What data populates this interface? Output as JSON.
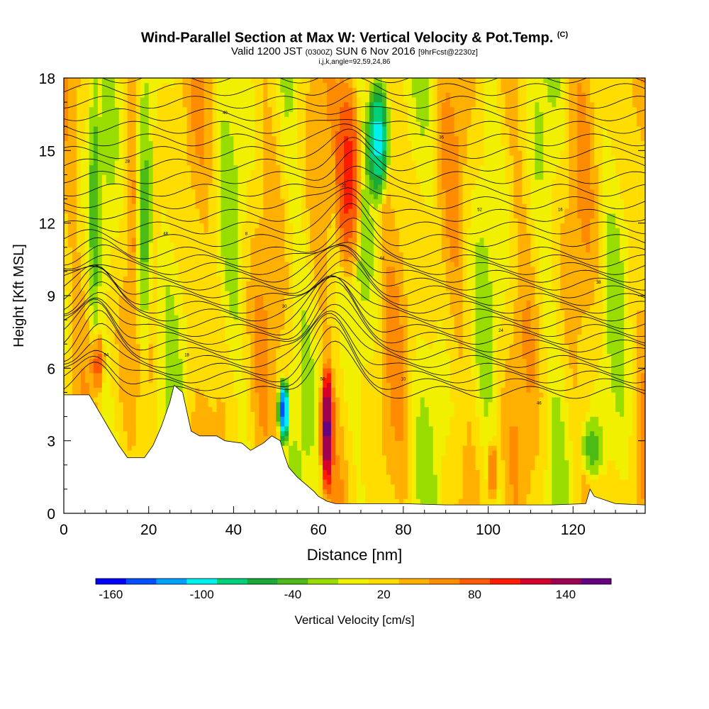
{
  "title": {
    "main": "Wind-Parallel Section at Max W: Vertical Velocity & Pot.Temp.",
    "copyright": "(C)",
    "valid_prefix": "Valid 1200 JST",
    "valid_utc": "(0300Z)",
    "valid_date": "SUN 6 Nov 2016",
    "forecast": "[9hrFcst@2230z]",
    "indices": "i,j,k,angle=92,59,24,86"
  },
  "chart_data": {
    "type": "heatmap",
    "xlabel": "Distance [nm]",
    "ylabel": "Height [Kft MSL]",
    "xlim": [
      0,
      137
    ],
    "ylim": [
      0,
      18
    ],
    "x_ticks": [
      0,
      20,
      40,
      60,
      80,
      100,
      120
    ],
    "y_ticks": [
      0,
      3,
      6,
      9,
      12,
      15,
      18
    ],
    "colorbar": {
      "label": "Vertical Velocity [cm/s]",
      "range": [
        -170,
        170
      ],
      "step": 20,
      "tick_values": [
        -160,
        -100,
        -40,
        20,
        80,
        140
      ],
      "tick_labels": [
        "-160",
        "-100",
        "-40",
        "20",
        "80",
        "140"
      ],
      "colors": [
        "#0000ff",
        "#0050ff",
        "#00a0ff",
        "#00f0f0",
        "#00d07a",
        "#1aaa3a",
        "#4cbb17",
        "#99dd00",
        "#f0f000",
        "#ffdd00",
        "#ffb000",
        "#ff8c00",
        "#ff5a00",
        "#ff1a00",
        "#d4002a",
        "#a00050",
        "#660080"
      ]
    },
    "terrain": [
      [
        0,
        4.9
      ],
      [
        6,
        4.9
      ],
      [
        9,
        4.0
      ],
      [
        11,
        3.4
      ],
      [
        13,
        2.8
      ],
      [
        15,
        2.3
      ],
      [
        19,
        2.3
      ],
      [
        21,
        2.8
      ],
      [
        23,
        3.6
      ],
      [
        25,
        4.6
      ],
      [
        26,
        5.3
      ],
      [
        28,
        5.0
      ],
      [
        29,
        4.2
      ],
      [
        30,
        3.4
      ],
      [
        32,
        3.2
      ],
      [
        36,
        3.2
      ],
      [
        38,
        3.0
      ],
      [
        42,
        2.9
      ],
      [
        44,
        2.6
      ],
      [
        47,
        2.9
      ],
      [
        49,
        3.2
      ],
      [
        51,
        3.0
      ],
      [
        52,
        2.4
      ],
      [
        53,
        1.9
      ],
      [
        55,
        1.5
      ],
      [
        57,
        1.2
      ],
      [
        59,
        0.9
      ],
      [
        60,
        0.7
      ],
      [
        62,
        0.5
      ],
      [
        64,
        0.4
      ],
      [
        72,
        0.4
      ],
      [
        80,
        0.4
      ],
      [
        90,
        0.35
      ],
      [
        100,
        0.35
      ],
      [
        115,
        0.35
      ],
      [
        123,
        0.4
      ],
      [
        124,
        1.0
      ],
      [
        125,
        0.7
      ],
      [
        130,
        0.4
      ],
      [
        137,
        0.35
      ]
    ],
    "w_field": [
      {
        "x": 62,
        "x_extent": [
          60.5,
          63.5
        ],
        "z_extent": [
          1.0,
          6.0
        ],
        "w": 160
      },
      {
        "x": 67,
        "x_extent": [
          64,
          70
        ],
        "z_extent": [
          10.0,
          18.0
        ],
        "w": 100
      },
      {
        "x": 74,
        "x_extent": [
          71.5,
          76.5
        ],
        "z_extent": [
          13.0,
          18.0
        ],
        "w": -100
      },
      {
        "x": 52,
        "x_extent": [
          50.5,
          53
        ],
        "z_extent": [
          3.0,
          5.5
        ],
        "w": -140
      },
      {
        "x": 8,
        "x_extent": [
          6.5,
          9.5
        ],
        "z_extent": [
          5.0,
          7.5
        ],
        "w": 80
      },
      {
        "x": 101,
        "x_extent": [
          100,
          102
        ],
        "z_extent": [
          0.5,
          3.0
        ],
        "w": 80
      },
      {
        "x": 7,
        "x_extent": [
          6,
          8.5
        ],
        "z_extent": [
          7.5,
          18.0
        ],
        "w": -40
      },
      {
        "x": 19,
        "x_extent": [
          17,
          21
        ],
        "z_extent": [
          6.5,
          18.0
        ],
        "w": -40
      },
      {
        "x": 124,
        "x_extent": [
          122,
          127
        ],
        "z_extent": [
          1.5,
          4.0
        ],
        "w": -40
      }
    ],
    "theta_contour_labels": [
      "6",
      "8",
      "10",
      "16",
      "18",
      "20",
      "24",
      "28",
      "30",
      "36",
      "38",
      "40",
      "44",
      "46",
      "48",
      "50",
      "52",
      "54"
    ]
  }
}
